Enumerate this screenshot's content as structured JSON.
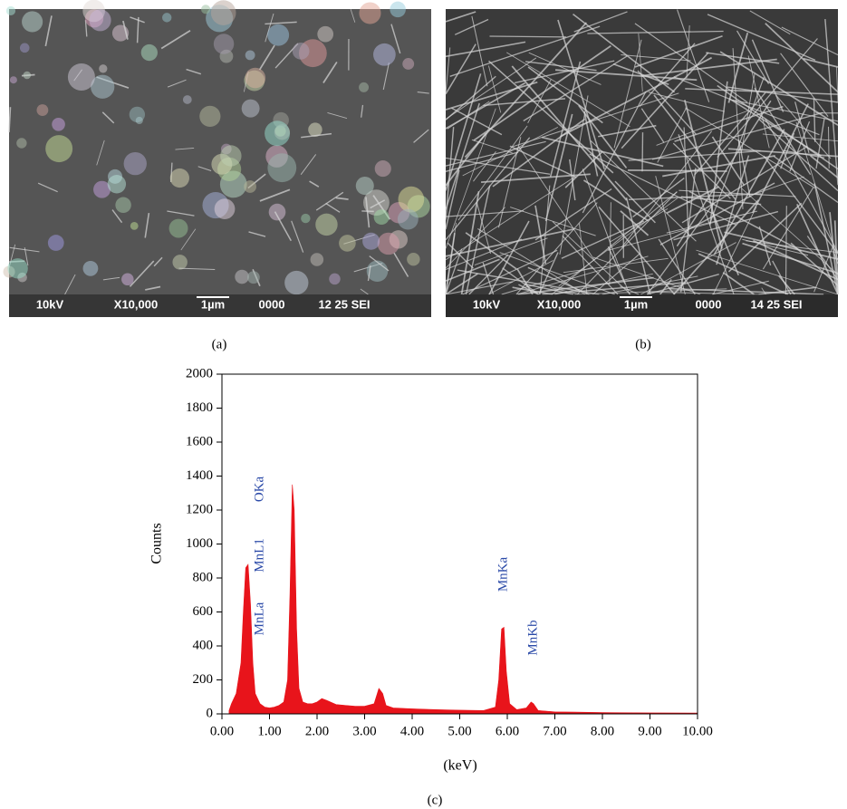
{
  "panels": [
    {
      "label": "(a)",
      "info": [
        "10kV",
        "X10,000",
        "1µm",
        "0000",
        "12 25 SEI"
      ]
    },
    {
      "label": "(b)",
      "info": [
        "10kV",
        "X10,000",
        "1µm",
        "0000",
        "14 25 SEI"
      ]
    }
  ],
  "chart_data": {
    "type": "area",
    "label": "(c)",
    "x_label": "(keV)",
    "y_label": "Counts",
    "color": "#e8141b",
    "grid": false,
    "annotations": [
      "MnLa",
      "MnL1",
      "OKa",
      "MnKa",
      "MnKb"
    ],
    "annotation_color": "#2b4aa8",
    "x": [
      0.15,
      0.2,
      0.3,
      0.4,
      0.45,
      0.5,
      0.55,
      0.6,
      0.65,
      0.7,
      0.8,
      0.9,
      1.0,
      1.1,
      1.2,
      1.3,
      1.38,
      1.43,
      1.48,
      1.52,
      1.57,
      1.62,
      1.7,
      1.8,
      1.9,
      2.0,
      2.1,
      2.2,
      2.4,
      2.6,
      2.8,
      3.0,
      3.2,
      3.3,
      3.38,
      3.45,
      3.6,
      4.0,
      4.5,
      5.0,
      5.5,
      5.75,
      5.82,
      5.88,
      5.93,
      5.98,
      6.05,
      6.2,
      6.4,
      6.5,
      6.55,
      6.65,
      7.0,
      8.0,
      9.0,
      10.0
    ],
    "values": [
      20,
      60,
      120,
      300,
      600,
      860,
      880,
      650,
      300,
      120,
      60,
      40,
      35,
      40,
      50,
      70,
      200,
      700,
      1350,
      1200,
      500,
      150,
      70,
      60,
      60,
      70,
      90,
      80,
      55,
      50,
      45,
      45,
      60,
      150,
      120,
      50,
      35,
      30,
      25,
      22,
      20,
      40,
      200,
      500,
      510,
      250,
      60,
      25,
      35,
      70,
      60,
      20,
      12,
      8,
      6,
      5
    ],
    "xlim": [
      0,
      10
    ],
    "ylim": [
      0,
      2000
    ],
    "xticks": [
      {
        "value": 0,
        "label": "0.00"
      },
      {
        "value": 1,
        "label": "1.00"
      },
      {
        "value": 2,
        "label": "2.00"
      },
      {
        "value": 3,
        "label": "3.00"
      },
      {
        "value": 4,
        "label": "4.00"
      },
      {
        "value": 5,
        "label": "5.00"
      },
      {
        "value": 6,
        "label": "6.00"
      },
      {
        "value": 7,
        "label": "7.00"
      },
      {
        "value": 8,
        "label": "8.00"
      },
      {
        "value": 9,
        "label": "9.00"
      },
      {
        "value": 10,
        "label": "10.00"
      }
    ],
    "yticks": [
      0,
      200,
      400,
      600,
      800,
      1000,
      1200,
      1400,
      1600,
      1800,
      2000
    ]
  }
}
